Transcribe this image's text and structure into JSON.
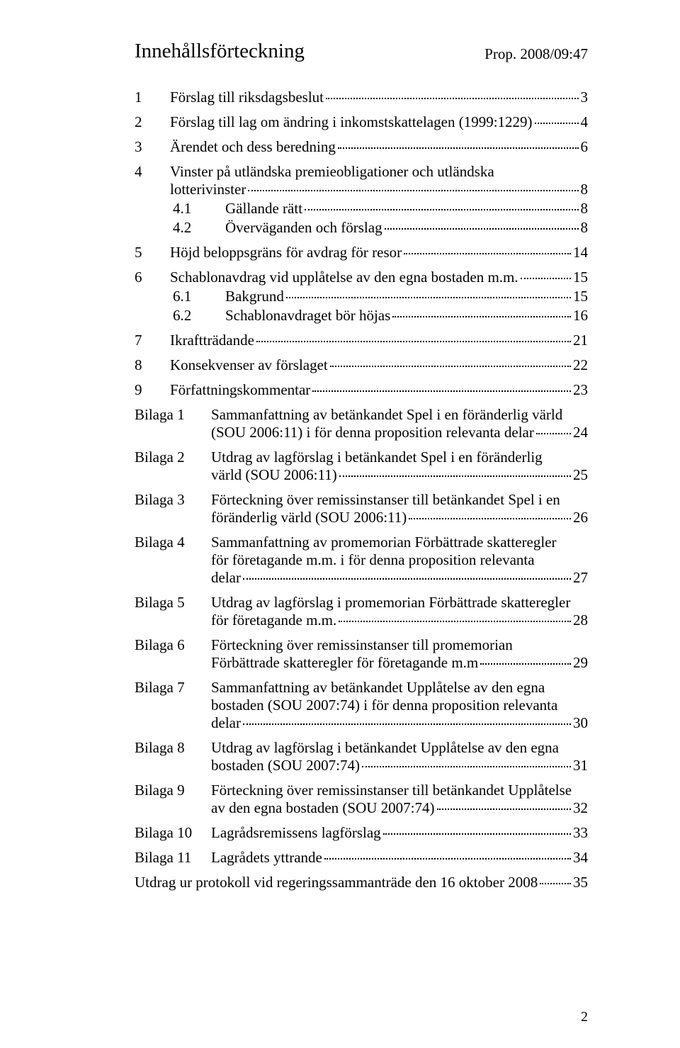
{
  "header": {
    "title": "Innehållsförteckning",
    "prop": "Prop. 2008/09:47"
  },
  "toc": [
    {
      "num": "1",
      "label": "Förslag till riksdagsbeslut",
      "page": "3",
      "level": 1
    },
    {
      "num": "2",
      "label": "Förslag till lag om ändring i inkomstskattelagen (1999:1229)",
      "page": "4",
      "level": 1
    },
    {
      "num": "3",
      "label": "Ärendet och dess beredning",
      "page": "6",
      "level": 1
    },
    {
      "num": "4",
      "label_lines": [
        "Vinster på utländska premieobligationer och utländska",
        "lotterivinster"
      ],
      "page": "8",
      "level": 1
    },
    {
      "num": "4.1",
      "label": "Gällande rätt",
      "page": "8",
      "level": 2
    },
    {
      "num": "4.2",
      "label": "Överväganden och förslag",
      "page": "8",
      "level": 2
    },
    {
      "num": "5",
      "label": "Höjd beloppsgräns för avdrag för resor",
      "page": "14",
      "level": 1
    },
    {
      "num": "6",
      "label": "Schablonavdrag vid upplåtelse av den egna bostaden m.m. ",
      "page": "15",
      "level": 1
    },
    {
      "num": "6.1",
      "label": "Bakgrund",
      "page": "15",
      "level": 2
    },
    {
      "num": "6.2",
      "label": "Schablonavdraget bör höjas",
      "page": "16",
      "level": 2
    },
    {
      "num": "7",
      "label": "Ikraftträdande",
      "page": "21",
      "level": 1
    },
    {
      "num": "8",
      "label": "Konsekvenser av förslaget",
      "page": "22",
      "level": 1
    },
    {
      "num": "9",
      "label": "Författningskommentar",
      "page": "23",
      "level": 1
    }
  ],
  "bilagor": [
    {
      "num": "Bilaga 1",
      "lines": [
        "Sammanfattning av betänkandet Spel i en föränderlig värld",
        "(SOU 2006:11) i för denna proposition relevanta delar"
      ],
      "page": "24"
    },
    {
      "num": "Bilaga 2",
      "lines": [
        "Utdrag av lagförslag i betänkandet Spel i en föränderlig",
        "värld (SOU 2006:11)"
      ],
      "page": "25"
    },
    {
      "num": "Bilaga 3",
      "lines": [
        "Förteckning över remissinstanser till betänkandet Spel i en",
        "föränderlig värld (SOU 2006:11)"
      ],
      "page": "26"
    },
    {
      "num": "Bilaga 4",
      "lines": [
        "Sammanfattning av promemorian Förbättrade skatteregler",
        "för företagande m.m. i för denna proposition relevanta",
        "delar"
      ],
      "page": "27"
    },
    {
      "num": "Bilaga 5",
      "lines": [
        "Utdrag av lagförslag i promemorian Förbättrade skatteregler",
        "för företagande m.m. "
      ],
      "page": "28"
    },
    {
      "num": "Bilaga 6",
      "lines": [
        "Förteckning över remissinstanser till promemorian",
        "Förbättrade skatteregler för företagande m.m"
      ],
      "page": "29"
    },
    {
      "num": "Bilaga 7",
      "lines": [
        "Sammanfattning av betänkandet Upplåtelse av den egna",
        "bostaden (SOU 2007:74) i för denna proposition relevanta",
        "delar"
      ],
      "page": "30"
    },
    {
      "num": "Bilaga 8",
      "lines": [
        "Utdrag av lagförslag i betänkandet Upplåtelse av den egna",
        "bostaden (SOU 2007:74)"
      ],
      "page": "31"
    },
    {
      "num": "Bilaga 9",
      "lines": [
        "Förteckning över remissinstanser till betänkandet Upplåtelse",
        "av den egna bostaden (SOU 2007:74)"
      ],
      "page": "32"
    },
    {
      "num": "Bilaga 10",
      "lines": [
        "Lagrådsremissens lagförslag"
      ],
      "page": "33"
    },
    {
      "num": "Bilaga 11",
      "lines": [
        "Lagrådets yttrande"
      ],
      "page": "34"
    }
  ],
  "utdrag": {
    "label": "Utdrag ur protokoll vid regeringssammanträde den 16 oktober 2008",
    "page": "35"
  },
  "pageNumber": "2"
}
